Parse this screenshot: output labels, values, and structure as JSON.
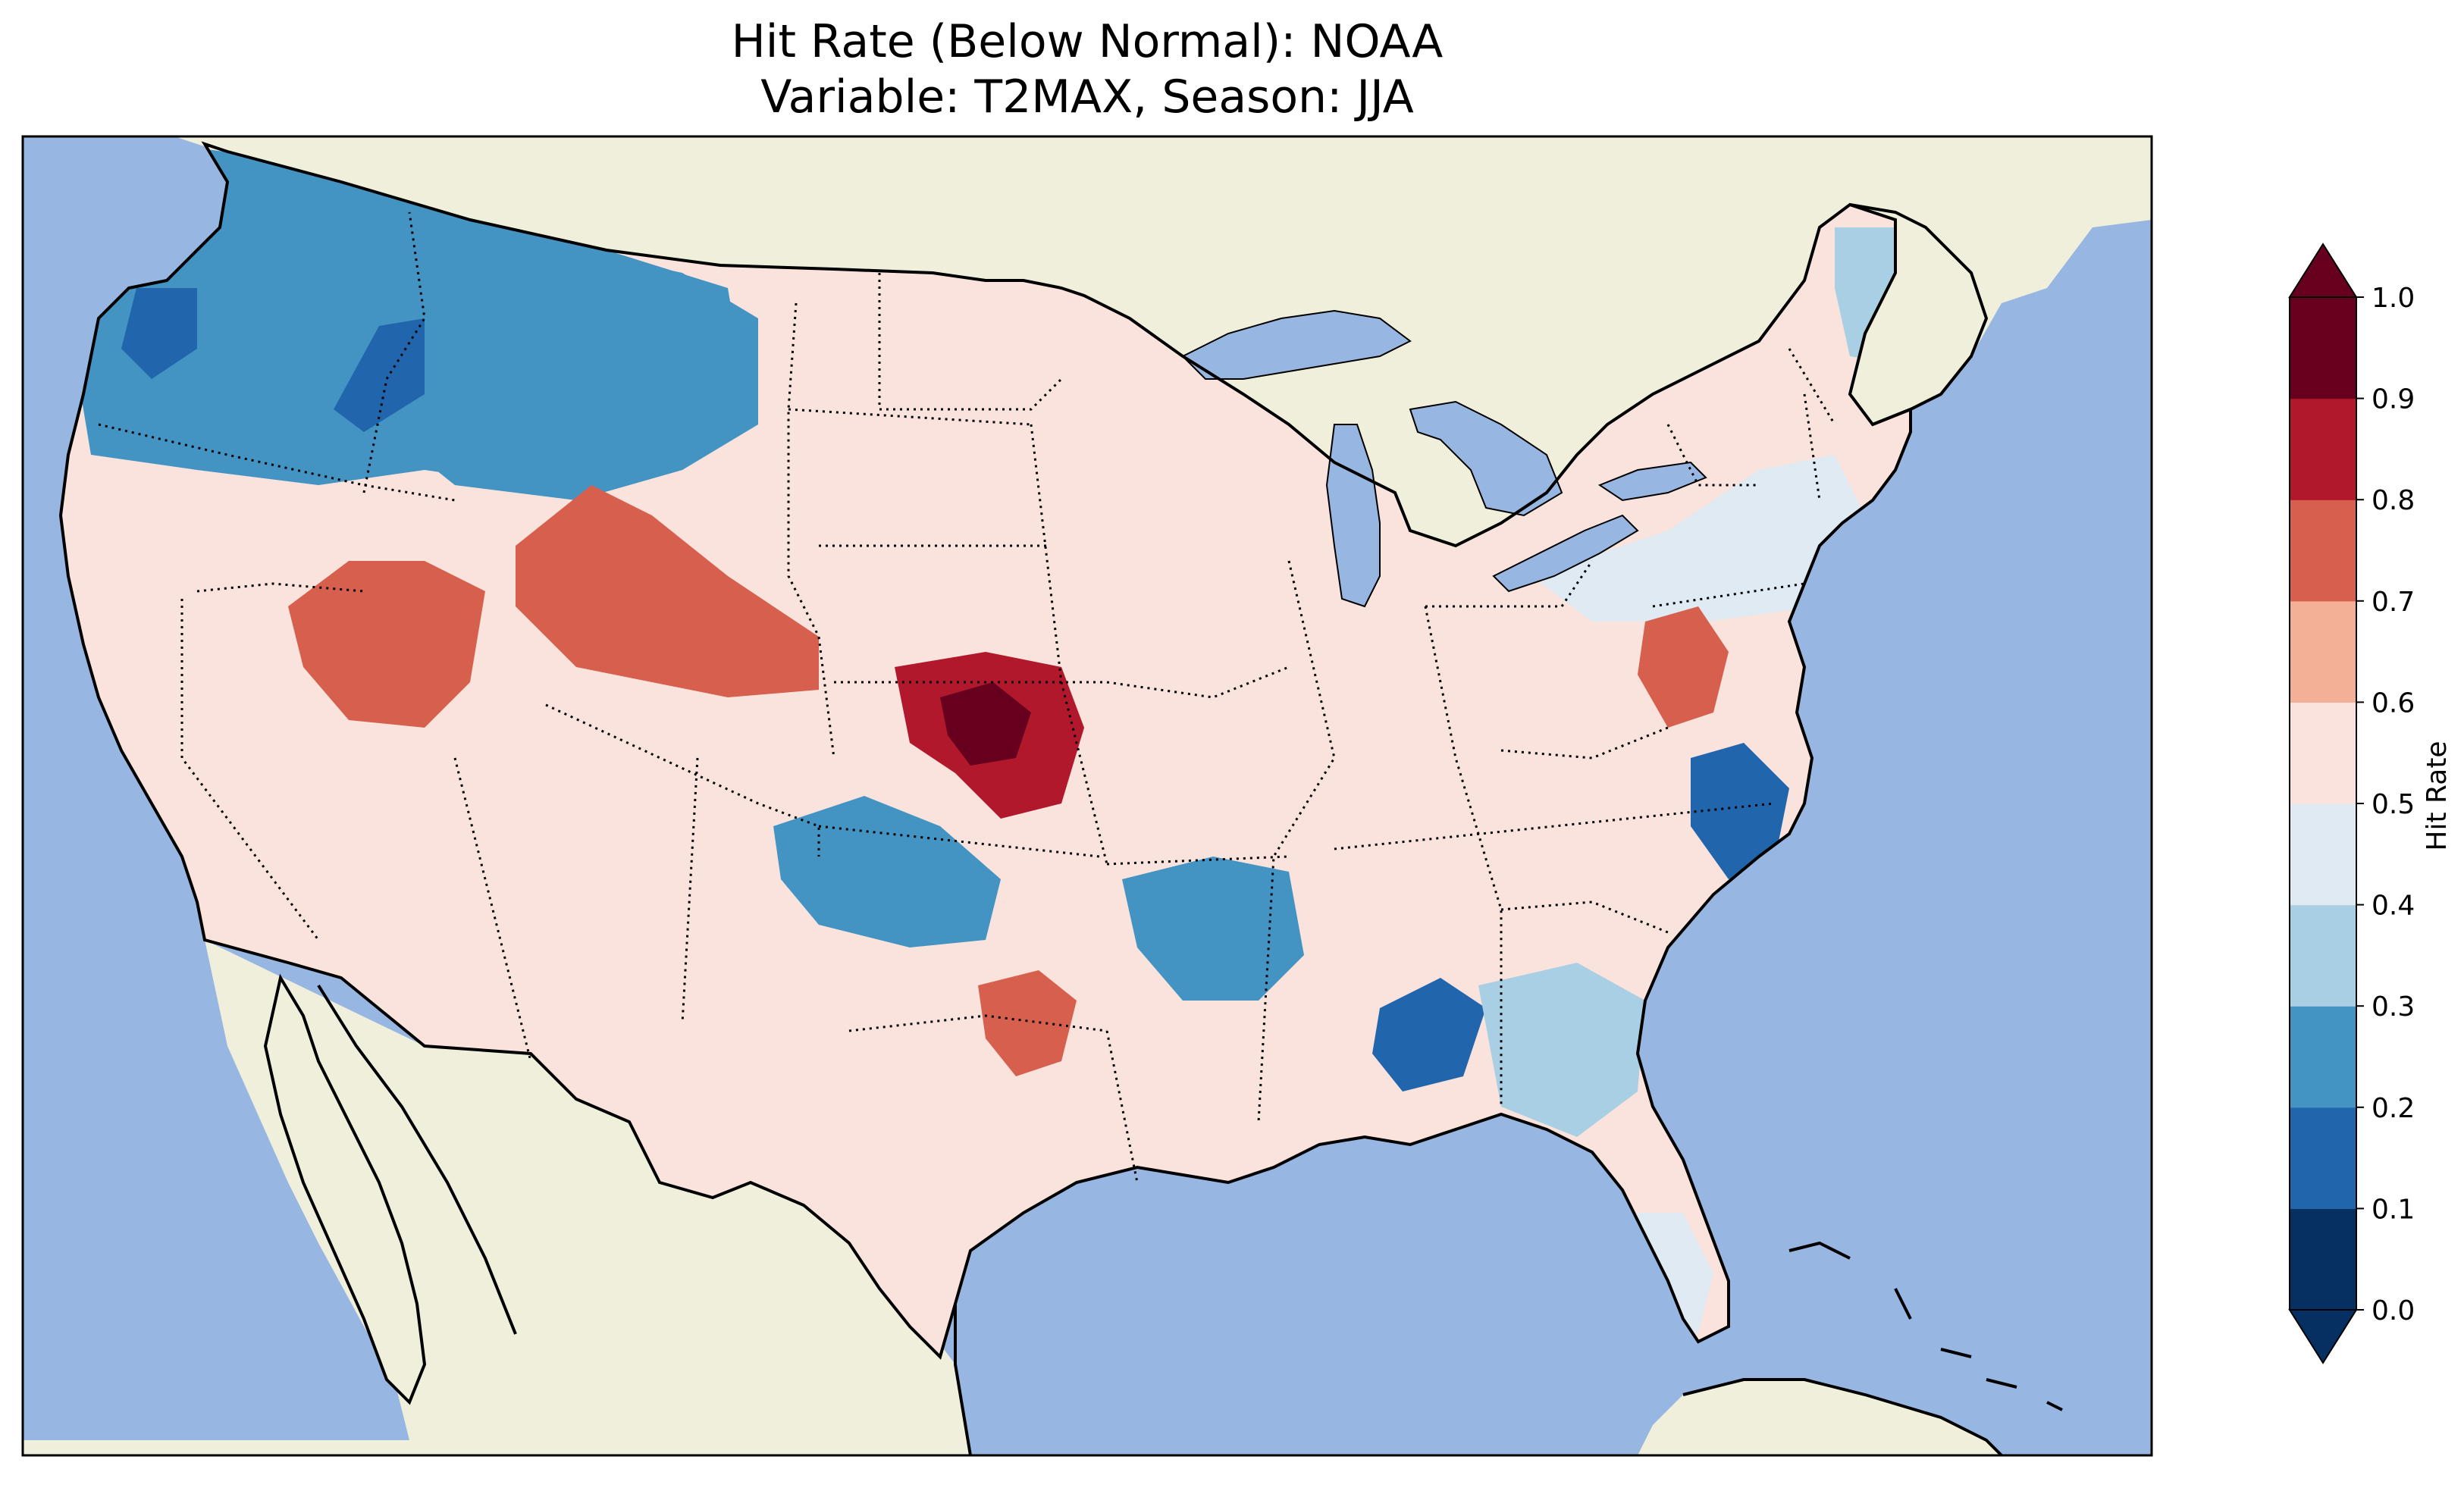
{
  "title": {
    "line1": "Hit Rate (Below Normal): NOAA",
    "line2": "Variable: T2MAX, Season: JJA"
  },
  "colors": {
    "ocean": "#97b6e1",
    "land": "#efefdb",
    "lakes": "#97b6e1",
    "coast": "#000000",
    "borders": "#000000"
  },
  "colorbar": {
    "label": "Hit Rate",
    "extend": "both",
    "ticks": [
      "0.0",
      "0.1",
      "0.2",
      "0.3",
      "0.4",
      "0.5",
      "0.6",
      "0.7",
      "0.8",
      "0.9",
      "1.0"
    ],
    "bins": [
      {
        "range": [
          0.0,
          0.1
        ],
        "color": "#053061"
      },
      {
        "range": [
          0.1,
          0.2
        ],
        "color": "#2166ac"
      },
      {
        "range": [
          0.2,
          0.3
        ],
        "color": "#4393c3"
      },
      {
        "range": [
          0.3,
          0.4
        ],
        "color": "#a9cfe4"
      },
      {
        "range": [
          0.4,
          0.5
        ],
        "color": "#dfeaf2"
      },
      {
        "range": [
          0.5,
          0.6
        ],
        "color": "#f9e3dc"
      },
      {
        "range": [
          0.6,
          0.7
        ],
        "color": "#f4b096"
      },
      {
        "range": [
          0.7,
          0.8
        ],
        "color": "#d6604d"
      },
      {
        "range": [
          0.8,
          0.9
        ],
        "color": "#b2182b"
      },
      {
        "range": [
          0.9,
          1.0
        ],
        "color": "#67001f"
      }
    ],
    "under_color": "#053061",
    "over_color": "#67001f"
  },
  "field": {
    "description_regions": [
      {
        "name": "Pacific Northwest / Washington",
        "value": 0.25
      },
      {
        "name": "Northern Rockies / Montana-Idaho",
        "value": 0.25
      },
      {
        "name": "Coastal Oregon-Washington core",
        "value": 0.15
      },
      {
        "name": "Idaho panhandle core",
        "value": 0.15
      },
      {
        "name": "Great Basin / Utah-Nevada",
        "value": 0.75
      },
      {
        "name": "Wyoming",
        "value": 0.75
      },
      {
        "name": "Northern Kansas",
        "value": 0.85
      },
      {
        "name": "Northern Kansas peak",
        "value": 0.95
      },
      {
        "name": "Colorado south / Oklahoma panhandle",
        "value": 0.25
      },
      {
        "name": "Arkansas / Mississippi delta",
        "value": 0.25
      },
      {
        "name": "Alabama",
        "value": 0.15
      },
      {
        "name": "Eastern North Carolina",
        "value": 0.15
      },
      {
        "name": "Virginia",
        "value": 0.75
      },
      {
        "name": "Texas / Oklahoma border",
        "value": 0.75
      },
      {
        "name": "Southwest US",
        "value": 0.55
      },
      {
        "name": "Midwest / Great Plains",
        "value": 0.55
      },
      {
        "name": "Northeast US",
        "value": 0.45
      },
      {
        "name": "Maine",
        "value": 0.35
      },
      {
        "name": "Georgia / Florida panhandle",
        "value": 0.35
      },
      {
        "name": "Southern Florida",
        "value": 0.45
      }
    ]
  }
}
